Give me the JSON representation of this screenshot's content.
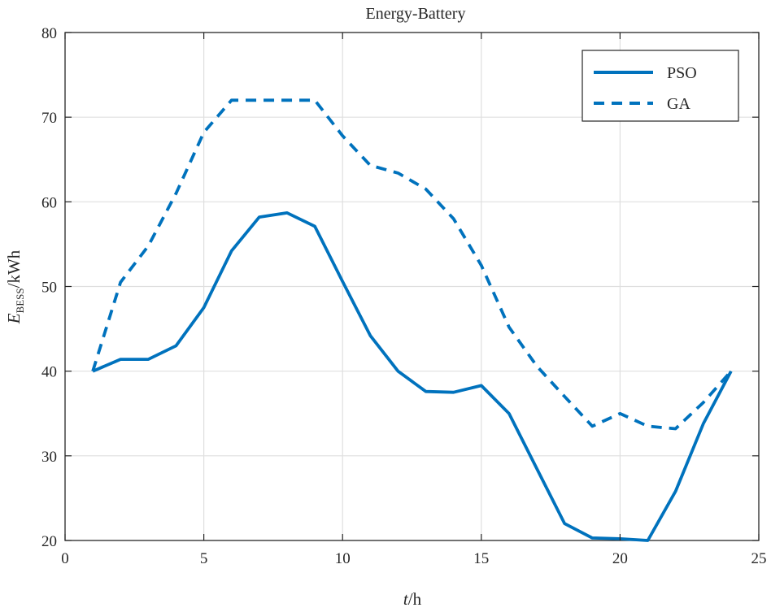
{
  "chart_data": {
    "type": "line",
    "title": "Energy-Battery",
    "xlabel": {
      "main": "t",
      "unit": "/h"
    },
    "ylabel": {
      "main": "E",
      "subscript": "BESS",
      "unit": "/kWh"
    },
    "xlim": [
      0,
      25
    ],
    "ylim": [
      20,
      80
    ],
    "xticks": [
      0,
      5,
      10,
      15,
      20,
      25
    ],
    "yticks": [
      20,
      30,
      40,
      50,
      60,
      70,
      80
    ],
    "grid": true,
    "legend_position": "top-right",
    "series": [
      {
        "name": "PSO",
        "style": "solid",
        "color": "#0072BD",
        "x": [
          1,
          2,
          3,
          4,
          5,
          6,
          7,
          8,
          9,
          10,
          11,
          12,
          13,
          14,
          15,
          16,
          17,
          18,
          19,
          20,
          21,
          22,
          23,
          24
        ],
        "y": [
          40,
          41.4,
          41.4,
          43,
          47.5,
          54.2,
          58.2,
          58.7,
          57.1,
          50.6,
          44.2,
          40.0,
          37.6,
          37.5,
          38.3,
          35.0,
          28.5,
          22.0,
          20.3,
          20.2,
          20.0,
          25.8,
          33.8,
          40
        ]
      },
      {
        "name": "GA",
        "style": "dashed",
        "color": "#0072BD",
        "x": [
          1,
          2,
          3,
          4,
          5,
          6,
          7,
          8,
          9,
          10,
          11,
          12,
          13,
          14,
          15,
          16,
          17,
          18,
          19,
          20,
          21,
          22,
          23,
          24
        ],
        "y": [
          40,
          50.5,
          54.8,
          61,
          68.2,
          72,
          72,
          72,
          72,
          67.8,
          64.3,
          63.4,
          61.5,
          58,
          52.5,
          45.2,
          40.6,
          37.0,
          33.5,
          35.0,
          33.5,
          33.2,
          36.3,
          40
        ]
      }
    ]
  }
}
